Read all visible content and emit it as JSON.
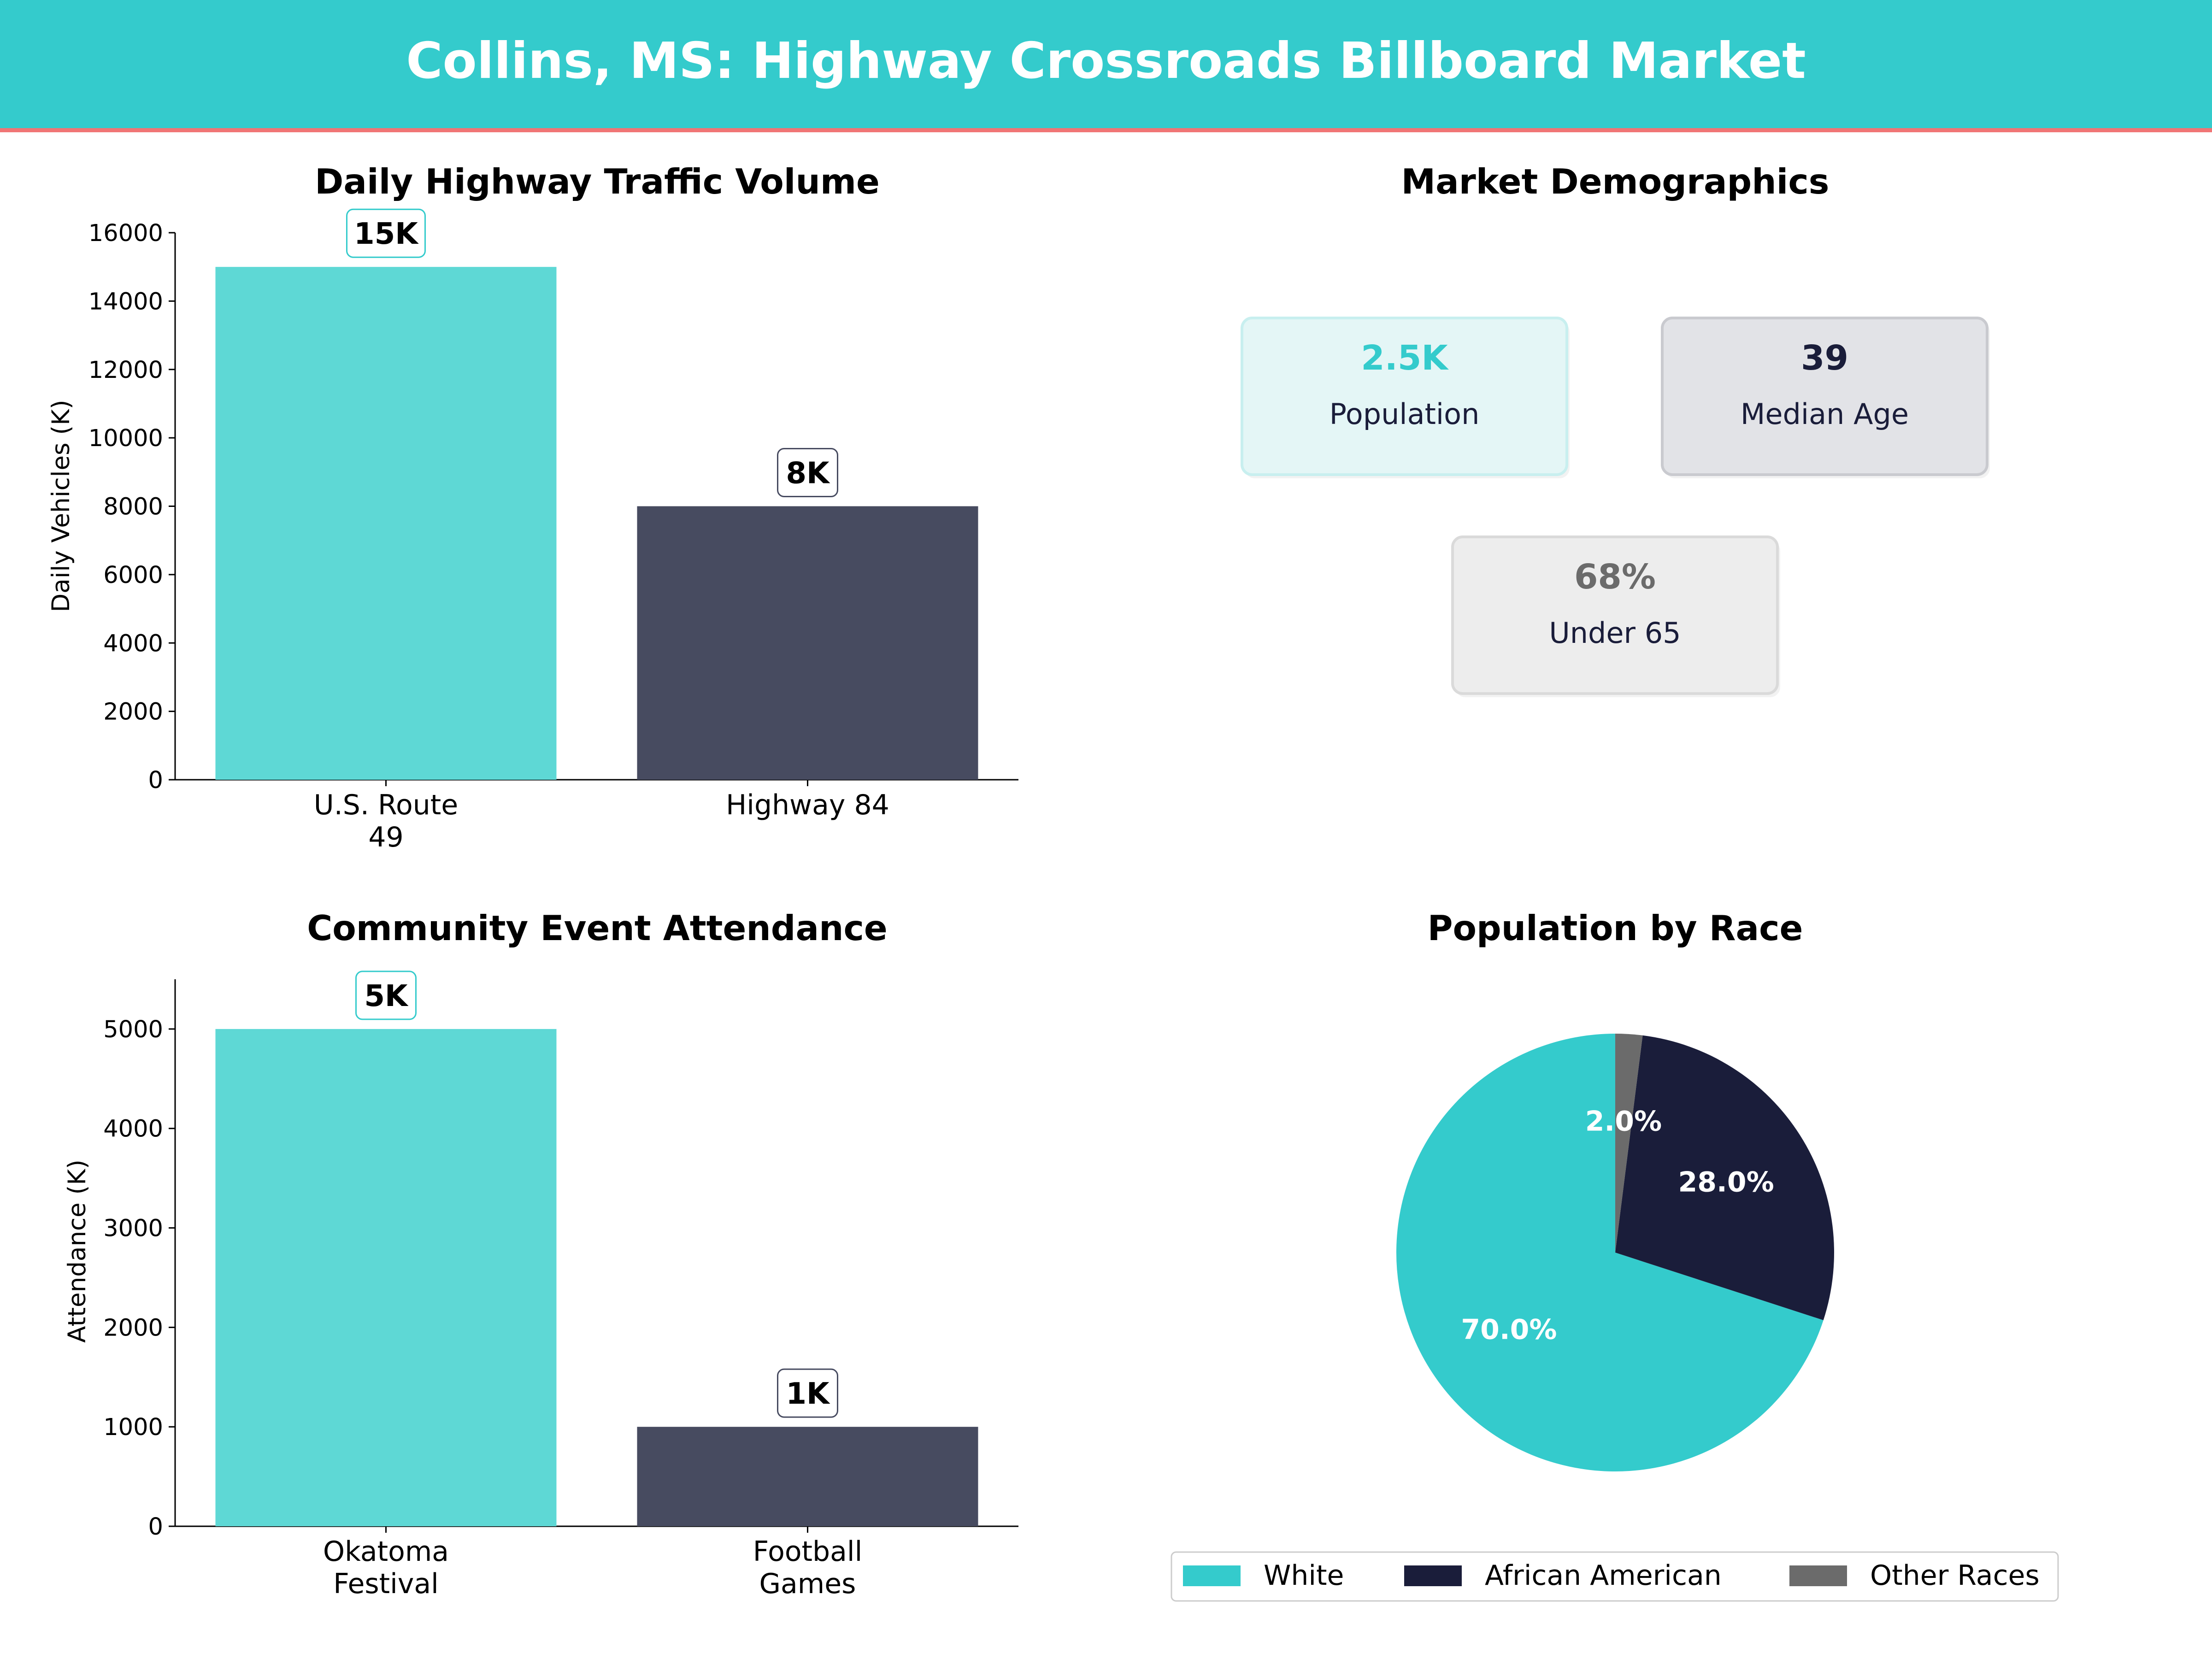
{
  "page_title": "Collins, MS: Highway Crossroads Billboard Market",
  "colors": {
    "header_bg": "#34CBCC",
    "header_rule": "#F07575",
    "teal": "#34CBCC",
    "navy": "#1A1D3A",
    "slate": "#474B60",
    "gray": "#6B6B6B"
  },
  "chart_data": [
    {
      "type": "bar",
      "title": "Daily Highway Traffic Volume",
      "ylabel": "Daily Vehicles (K)",
      "xlabel": "",
      "categories": [
        [
          "U.S. Route",
          "49"
        ],
        [
          "Highway 84"
        ]
      ],
      "values": [
        15000,
        8000
      ],
      "data_labels": [
        "15K",
        "8K"
      ],
      "bar_colors": [
        "#5ED8D5",
        "#474B60"
      ],
      "label_border_colors": [
        "#34CBCC",
        "#474B60"
      ],
      "ylim": [
        0,
        16000
      ],
      "yticks": [
        0,
        2000,
        4000,
        6000,
        8000,
        10000,
        12000,
        14000,
        16000
      ],
      "grid": false
    },
    {
      "type": "bar",
      "title": "Community Event Attendance",
      "ylabel": "Attendance (K)",
      "xlabel": "",
      "categories": [
        [
          "Okatoma",
          "Festival"
        ],
        [
          "Football",
          "Games"
        ]
      ],
      "values": [
        5000,
        1000
      ],
      "data_labels": [
        "5K",
        "1K"
      ],
      "bar_colors": [
        "#5ED8D5",
        "#474B60"
      ],
      "label_border_colors": [
        "#34CBCC",
        "#474B60"
      ],
      "ylim": [
        0,
        5500
      ],
      "yticks": [
        0,
        1000,
        2000,
        3000,
        4000,
        5000
      ],
      "grid": false
    },
    {
      "type": "pie",
      "title": "Population by Race",
      "labels": [
        "White",
        "African American",
        "Other Races"
      ],
      "values": [
        70.0,
        28.0,
        2.0
      ],
      "pct_labels": [
        "70.0%",
        "28.0%",
        "2.0%"
      ],
      "colors": [
        "#34CBCC",
        "#1A1D3A",
        "#6B6B6B"
      ],
      "legend_position": "bottom"
    }
  ],
  "demographics": {
    "title": "Market Demographics",
    "cards": [
      {
        "value": "2.5K",
        "label": "Population",
        "value_color": "#34CBCC",
        "bg": "#E4F6F6",
        "border": "#C8EFEF"
      },
      {
        "value": "39",
        "label": "Median Age",
        "value_color": "#1A1D3A",
        "bg": "#E2E3E7",
        "border": "#C9CACF"
      },
      {
        "value": "68%",
        "label": "Under 65",
        "value_color": "#6B6B6B",
        "bg": "#EDEDED",
        "border": "#DADADA"
      }
    ]
  }
}
